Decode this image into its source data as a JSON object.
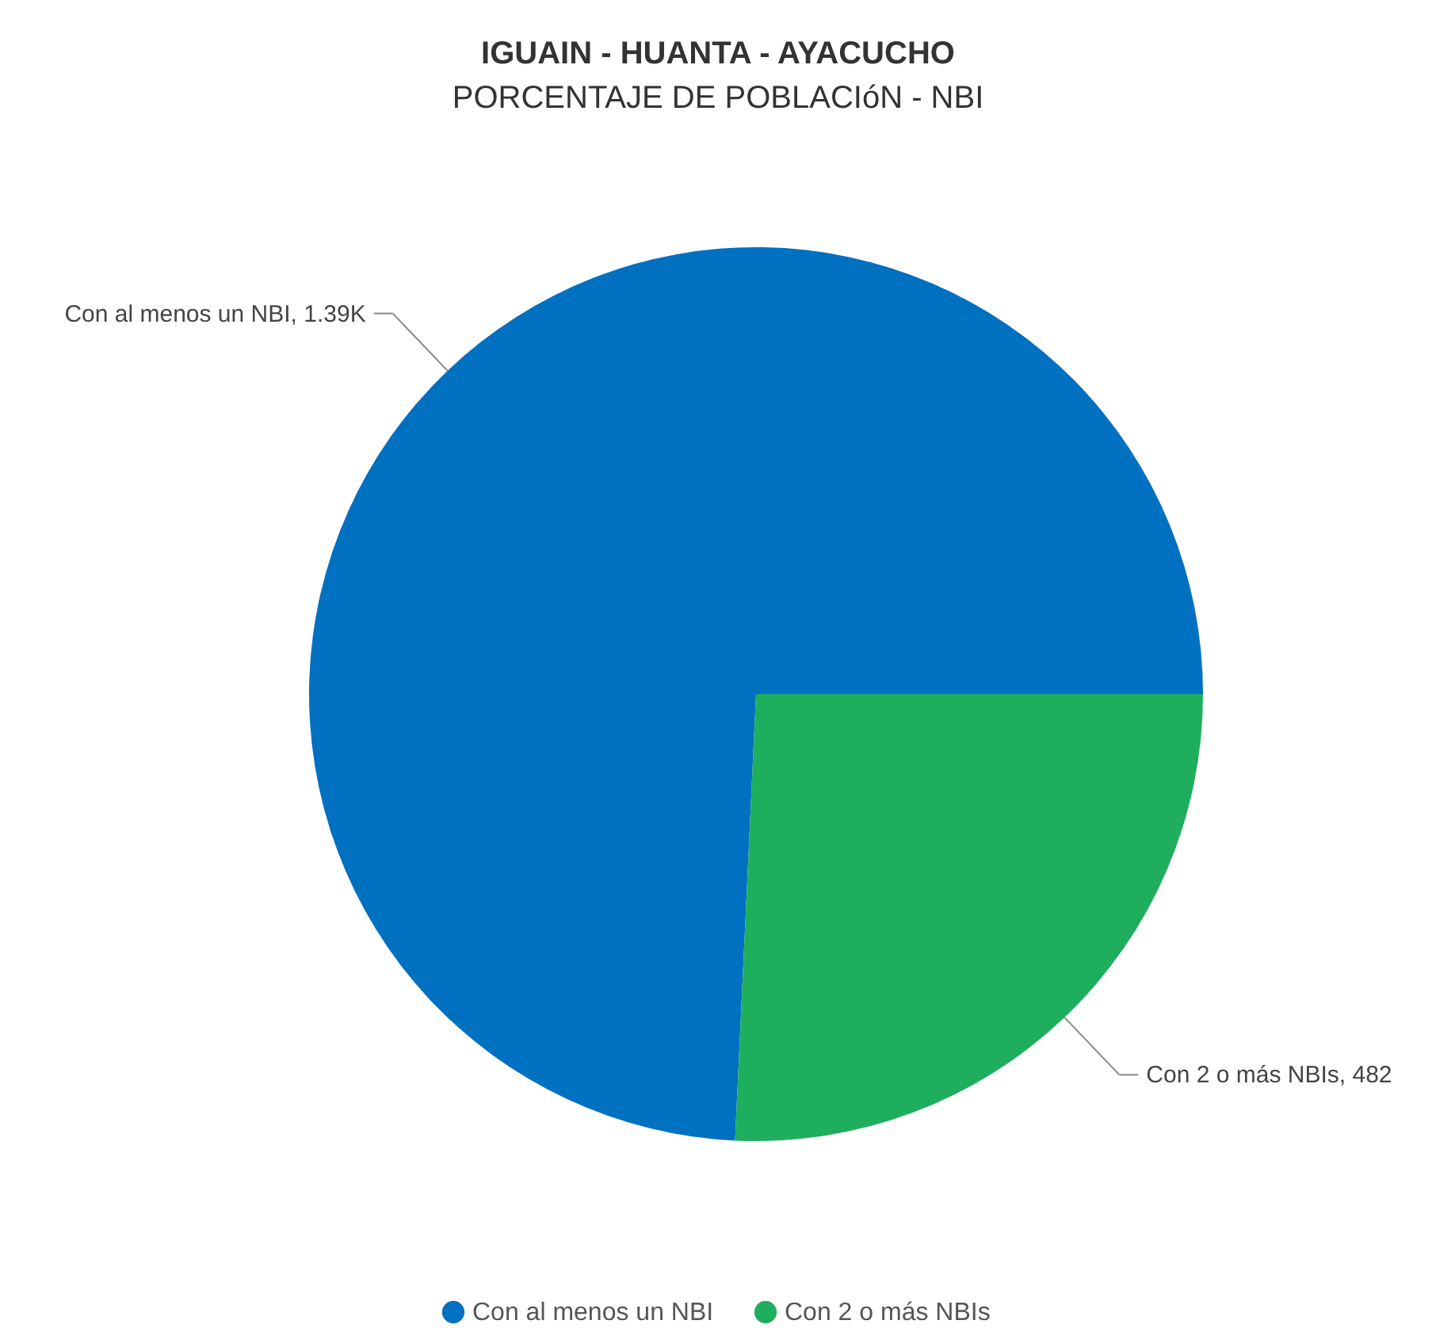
{
  "chart_data": {
    "type": "pie",
    "title": "IGUAIN - HUANTA - AYACUCHO",
    "subtitle": "PORCENTAJE DE POBLACIóN - NBI",
    "categories": [
      "Con al menos un NBI",
      "Con 2 o más NBIs"
    ],
    "values": [
      1390,
      482
    ],
    "value_labels": [
      "Con al menos un NBI, 1.39K",
      "Con 2 o más NBIs, 482"
    ],
    "colors": [
      "#0070c0",
      "#1fae5e"
    ],
    "legend": "bottom"
  }
}
